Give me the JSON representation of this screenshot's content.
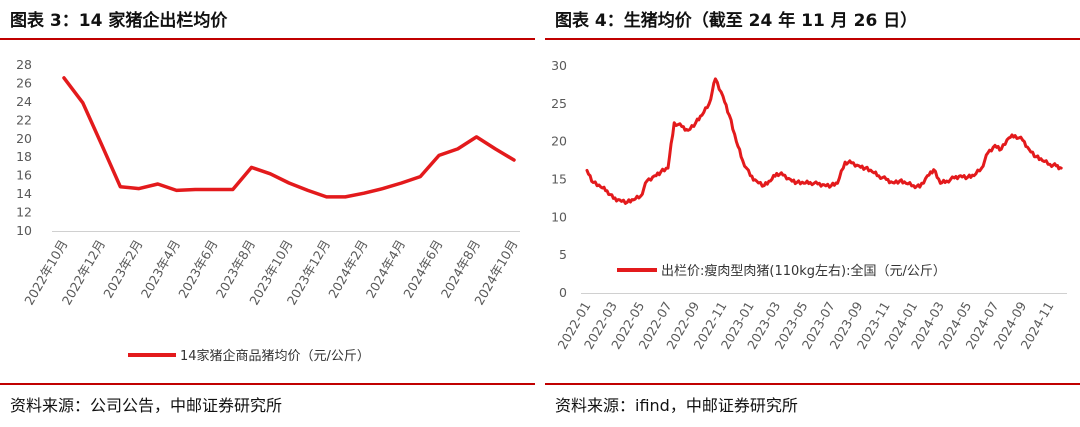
{
  "left": {
    "title": "图表 3：14 家猪企出栏均价",
    "source": "资料来源：公司公告，中邮证券研究所",
    "chart_data": {
      "type": "line",
      "categories": [
        "2022年10月",
        "2022年11月",
        "2022年12月",
        "2023年1月",
        "2023年2月",
        "2023年3月",
        "2023年4月",
        "2023年5月",
        "2023年6月",
        "2023年7月",
        "2023年8月",
        "2023年9月",
        "2023年10月",
        "2023年11月",
        "2023年12月",
        "2024年1月",
        "2024年2月",
        "2024年3月",
        "2024年4月",
        "2024年5月",
        "2024年6月",
        "2024年7月",
        "2024年8月",
        "2024年9月",
        "2024年10月"
      ],
      "tick_labels": [
        "2022年10月",
        "2022年12月",
        "2023年2月",
        "2023年4月",
        "2023年6月",
        "2023年8月",
        "2023年10月",
        "2023年12月",
        "2024年2月",
        "2024年4月",
        "2024年6月",
        "2024年8月",
        "2024年10月"
      ],
      "series": [
        {
          "name": "14家猪企商品猪均价（元/公斤）",
          "values": [
            26.6,
            23.9,
            19.4,
            14.8,
            14.6,
            15.1,
            14.4,
            14.5,
            14.5,
            14.5,
            16.9,
            16.2,
            15.2,
            14.4,
            13.7,
            13.7,
            14.1,
            14.6,
            15.2,
            15.9,
            18.2,
            18.9,
            20.2,
            18.9,
            17.7
          ]
        }
      ],
      "y_ticks": [
        "10",
        "12",
        "14",
        "16",
        "18",
        "20",
        "22",
        "24",
        "26",
        "28"
      ],
      "ylim": [
        10,
        28
      ],
      "grid": false,
      "legend_position": "bottom",
      "color": "#e31a1c"
    }
  },
  "right": {
    "title": "图表 4：生猪均价（截至 24 年 11 月 26 日）",
    "source": "资料来源：ifind，中邮证券研究所",
    "chart_data": {
      "type": "line",
      "x_tick_labels": [
        "2022-01",
        "2022-03",
        "2022-05",
        "2022-07",
        "2022-09",
        "2022-11",
        "2023-01",
        "2023-03",
        "2023-05",
        "2023-07",
        "2023-09",
        "2023-11",
        "2024-01",
        "2024-03",
        "2024-05",
        "2024-07",
        "2024-09",
        "2024-11"
      ],
      "series": [
        {
          "name": "出栏价:瘦肉型肉猪(110kg左右):全国（元/公斤）",
          "x": [
            "2022-01-01",
            "2022-01-15",
            "2022-02-01",
            "2022-02-15",
            "2022-03-01",
            "2022-03-15",
            "2022-04-01",
            "2022-04-15",
            "2022-05-01",
            "2022-05-15",
            "2022-06-01",
            "2022-06-15",
            "2022-07-01",
            "2022-07-15",
            "2022-08-01",
            "2022-08-15",
            "2022-09-01",
            "2022-09-15",
            "2022-10-01",
            "2022-10-15",
            "2022-11-01",
            "2022-11-15",
            "2022-12-01",
            "2022-12-15",
            "2023-01-01",
            "2023-01-15",
            "2023-02-01",
            "2023-02-15",
            "2023-03-01",
            "2023-03-15",
            "2023-04-01",
            "2023-04-15",
            "2023-05-01",
            "2023-05-15",
            "2023-06-01",
            "2023-06-15",
            "2023-07-01",
            "2023-07-15",
            "2023-08-01",
            "2023-08-15",
            "2023-09-01",
            "2023-09-15",
            "2023-10-01",
            "2023-10-15",
            "2023-11-01",
            "2023-11-15",
            "2023-12-01",
            "2023-12-15",
            "2024-01-01",
            "2024-01-15",
            "2024-02-01",
            "2024-02-15",
            "2024-03-01",
            "2024-03-15",
            "2024-04-01",
            "2024-04-15",
            "2024-05-01",
            "2024-05-15",
            "2024-06-01",
            "2024-06-15",
            "2024-07-01",
            "2024-07-15",
            "2024-08-01",
            "2024-08-15",
            "2024-09-01",
            "2024-09-15",
            "2024-10-01",
            "2024-10-15",
            "2024-11-01",
            "2024-11-15",
            "2024-11-26"
          ],
          "values": [
            16.2,
            14.6,
            14.0,
            13.5,
            12.5,
            12.3,
            12.0,
            12.3,
            12.8,
            14.8,
            15.5,
            16.0,
            16.5,
            22.5,
            22.0,
            21.5,
            22.5,
            23.5,
            25.0,
            28.3,
            26.0,
            23.5,
            20.0,
            17.5,
            15.5,
            14.8,
            14.2,
            14.8,
            15.8,
            15.6,
            15.0,
            14.6,
            14.5,
            14.6,
            14.4,
            14.3,
            14.2,
            14.5,
            17.3,
            17.2,
            16.8,
            16.5,
            16.0,
            15.5,
            15.0,
            14.6,
            14.8,
            14.5,
            14.2,
            14.0,
            15.5,
            16.3,
            14.5,
            14.8,
            15.2,
            15.5,
            15.3,
            15.5,
            16.5,
            18.5,
            19.5,
            19.0,
            20.5,
            20.8,
            20.2,
            19.0,
            18.0,
            17.5,
            17.0,
            16.8,
            16.5
          ]
        }
      ],
      "y_ticks": [
        "0",
        "5",
        "10",
        "15",
        "20",
        "25",
        "30"
      ],
      "ylim": [
        0,
        30
      ],
      "grid": false,
      "legend_position": "inside-bottom",
      "color": "#e31a1c"
    }
  }
}
